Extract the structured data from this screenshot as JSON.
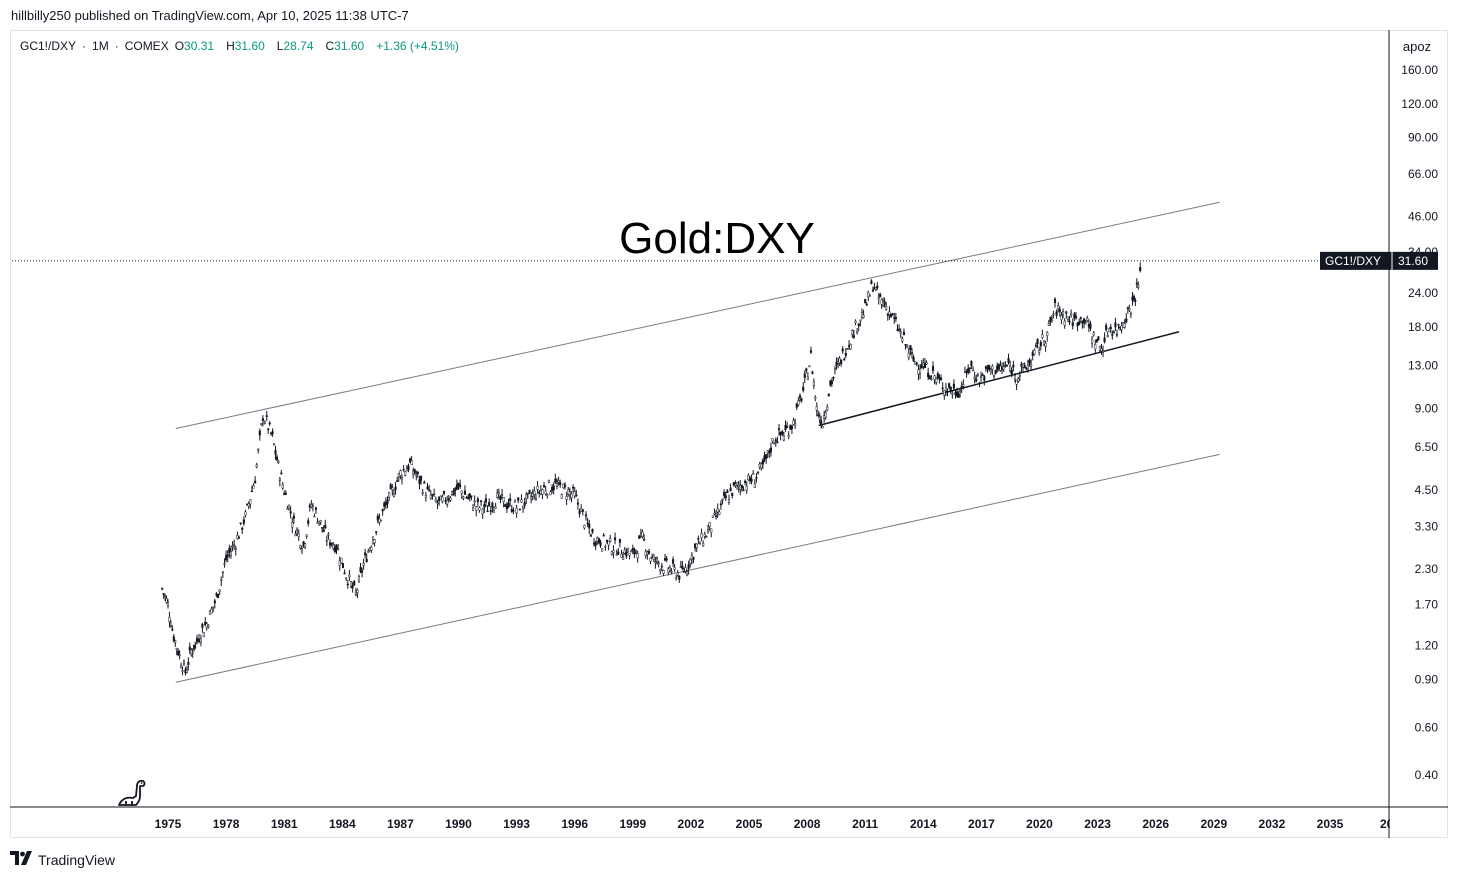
{
  "header": {
    "text": "hillbilly250 published on TradingView.com, Apr 10, 2025 11:38 UTC-7"
  },
  "legend": {
    "symbol": "GC1!/DXY",
    "interval": "1M",
    "exchange": "COMEX",
    "open_label": "O",
    "open": "30.31",
    "high_label": "H",
    "high": "31.60",
    "low_label": "L",
    "low": "28.74",
    "close_label": "C",
    "close": "31.60",
    "change": "+1.36 (+4.51%)"
  },
  "scale_button": "apoz",
  "price_tag": {
    "symbol": "GC1!/DXY",
    "value": "31.60"
  },
  "footer": {
    "brand": "TradingView",
    "logo_icon": "tradingview-logo-icon"
  },
  "colors": {
    "line": "#131722",
    "up": "#089981",
    "grid_border": "#e0e3eb",
    "tag_bg": "#131722"
  },
  "chart_data": {
    "type": "candlestick",
    "title": "Gold:DXY",
    "y_scale": "log",
    "y_ticks": [
      "160.00",
      "120.00",
      "90.00",
      "66.00",
      "46.00",
      "34.00",
      "24.00",
      "18.00",
      "13.00",
      "9.00",
      "6.50",
      "4.50",
      "3.30",
      "2.30",
      "1.70",
      "1.20",
      "0.90",
      "0.60",
      "0.40"
    ],
    "x_ticks": [
      "1975",
      "1978",
      "1981",
      "1984",
      "1987",
      "1990",
      "1993",
      "1996",
      "1999",
      "2002",
      "2005",
      "2008",
      "2011",
      "2014",
      "2017",
      "2020",
      "2023",
      "2026",
      "2029",
      "2032",
      "2035",
      "20"
    ],
    "last_value": 31.6,
    "series": [
      {
        "x": [
          1974.7,
          1975.0,
          1975.3,
          1975.6,
          1975.9,
          1976.2,
          1976.5,
          1976.7,
          1977.0,
          1977.5,
          1978.0,
          1978.5,
          1979.0,
          1979.5,
          1979.9,
          1980.1,
          1980.4,
          1980.7,
          1981.0,
          1981.5,
          1982.0,
          1982.4,
          1982.8,
          1983.2,
          1983.7,
          1984.2,
          1984.7,
          1985.1,
          1985.5,
          1986.0,
          1986.5,
          1987.0,
          1987.5,
          1987.9,
          1988.4,
          1989.0,
          1989.5,
          1990.0,
          1990.5,
          1991.0,
          1991.5,
          1992.0,
          1992.5,
          1993.0,
          1993.5,
          1994.0,
          1994.5,
          1995.0,
          1995.5,
          1996.0,
          1996.5,
          1997.0,
          1997.5,
          1998.0,
          1998.5,
          1999.0,
          1999.5,
          2000.0,
          2000.5,
          2001.0,
          2001.4,
          2001.8,
          2002.3,
          2002.8,
          2003.3,
          2003.8,
          2004.3,
          2004.8,
          2005.3,
          2005.8,
          2006.3,
          2006.8,
          2007.3,
          2007.8,
          2008.2,
          2008.5,
          2008.8,
          2009.2,
          2009.6,
          2010.0,
          2010.5,
          2011.0,
          2011.4,
          2011.7,
          2012.0,
          2012.5,
          2013.0,
          2013.5,
          2014.0,
          2014.5,
          2015.0,
          2015.5,
          2015.9,
          2016.4,
          2016.9,
          2017.4,
          2017.9,
          2018.4,
          2018.9,
          2019.4,
          2019.9,
          2020.4,
          2020.8,
          2021.3,
          2021.8,
          2022.3,
          2022.8,
          2023.2,
          2023.6,
          2024.0,
          2024.4,
          2024.8,
          2025.1,
          2025.3
        ],
        "y": [
          1.95,
          1.7,
          1.3,
          1.1,
          0.96,
          1.15,
          1.25,
          1.35,
          1.45,
          1.8,
          2.5,
          2.9,
          3.6,
          5.0,
          8.5,
          8.0,
          7.0,
          5.5,
          4.5,
          3.4,
          2.8,
          4.0,
          3.5,
          3.0,
          2.8,
          2.2,
          1.85,
          2.4,
          2.9,
          3.6,
          4.3,
          5.2,
          5.6,
          5.0,
          4.4,
          4.0,
          4.3,
          4.6,
          4.2,
          3.9,
          3.9,
          4.2,
          4.0,
          3.9,
          4.1,
          4.4,
          4.6,
          4.7,
          4.5,
          4.3,
          3.5,
          3.0,
          2.9,
          2.8,
          2.7,
          2.6,
          3.0,
          2.5,
          2.4,
          2.3,
          2.2,
          2.35,
          2.8,
          3.1,
          3.6,
          4.2,
          4.6,
          4.8,
          5.0,
          5.6,
          7.0,
          7.3,
          8.0,
          10.5,
          14.0,
          9.0,
          8.0,
          11.0,
          13.0,
          15.0,
          18.0,
          21.0,
          26.0,
          23.0,
          22.0,
          19.0,
          16.0,
          13.5,
          13.0,
          12.0,
          11.0,
          10.5,
          10.5,
          13.0,
          11.5,
          12.5,
          12.5,
          13.0,
          12.0,
          13.0,
          15.0,
          17.0,
          21.0,
          20.0,
          19.0,
          19.5,
          16.5,
          15.0,
          18.0,
          17.5,
          19.5,
          22.0,
          26.0,
          31.6
        ]
      }
    ]
  },
  "annotations": {
    "dino_icon": "dino-icon"
  }
}
